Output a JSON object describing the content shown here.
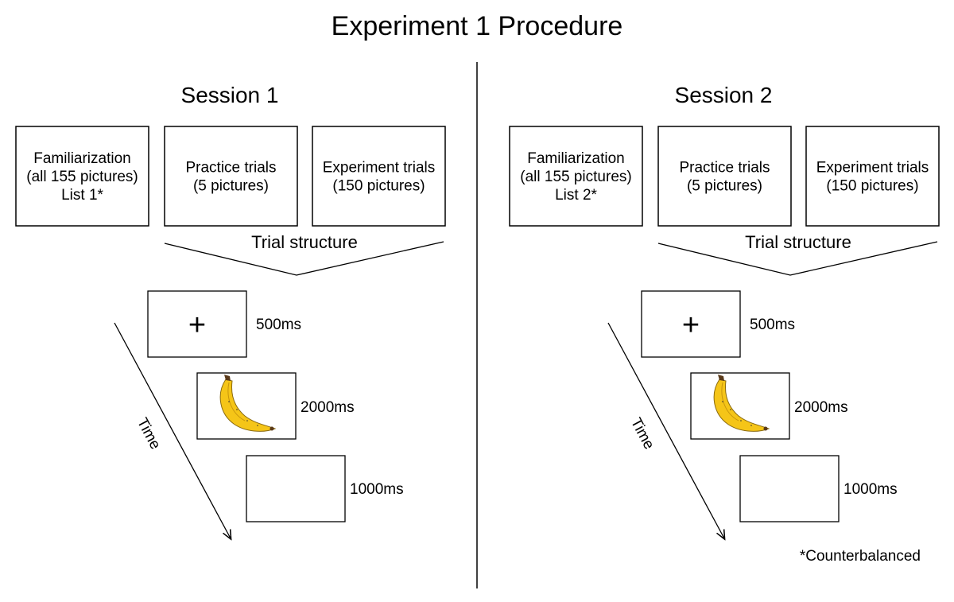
{
  "title": "Experiment 1 Procedure",
  "sessions": [
    {
      "label": "Session 1",
      "blocks": [
        {
          "lines": [
            "Familiarization",
            "(all 155 pictures)",
            "List 1*"
          ]
        },
        {
          "lines": [
            "Practice trials",
            "(5 pictures)"
          ]
        },
        {
          "lines": [
            "Experiment trials",
            "(150 pictures)"
          ]
        }
      ],
      "trial_structure_label": "Trial structure",
      "time_label": "Time",
      "trial_steps": [
        {
          "content": "fixation-cross",
          "symbol": "+",
          "duration": "500ms"
        },
        {
          "content": "banana-picture",
          "duration": "2000ms"
        },
        {
          "content": "blank-screen",
          "duration": "1000ms"
        }
      ]
    },
    {
      "label": "Session 2",
      "blocks": [
        {
          "lines": [
            "Familiarization",
            "(all 155 pictures)",
            "List 2*"
          ]
        },
        {
          "lines": [
            "Practice trials",
            "(5 pictures)"
          ]
        },
        {
          "lines": [
            "Experiment trials",
            "(150 pictures)"
          ]
        }
      ],
      "trial_structure_label": "Trial structure",
      "time_label": "Time",
      "trial_steps": [
        {
          "content": "fixation-cross",
          "symbol": "+",
          "duration": "500ms"
        },
        {
          "content": "banana-picture",
          "duration": "2000ms"
        },
        {
          "content": "blank-screen",
          "duration": "1000ms"
        }
      ]
    }
  ],
  "footnote": "*Counterbalanced",
  "colors": {
    "banana": "#f5c518",
    "banana_outline": "#8a6a10",
    "stem": "#5a3a1a"
  }
}
